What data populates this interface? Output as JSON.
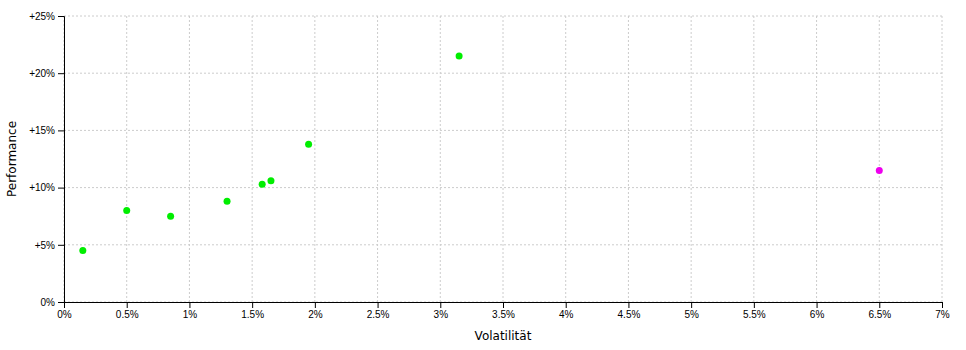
{
  "chart_data": {
    "type": "scatter",
    "xlabel": "Volatilität",
    "ylabel": "Performance",
    "series": [
      {
        "color": "#00ee00",
        "x": [
          0.15,
          0.5,
          0.85,
          1.3,
          1.58,
          1.65,
          1.95,
          3.15
        ],
        "values": [
          4.5,
          8.0,
          7.5,
          8.8,
          10.3,
          10.6,
          13.8,
          21.5
        ]
      },
      {
        "color": "#ee00ee",
        "x": [
          6.5
        ],
        "values": [
          11.5
        ]
      }
    ],
    "xlim": [
      0,
      7
    ],
    "ylim": [
      0,
      25
    ],
    "xticks": [
      {
        "value": 0,
        "label": "0%"
      },
      {
        "value": 0.5,
        "label": "0.5%"
      },
      {
        "value": 1.0,
        "label": "1%"
      },
      {
        "value": 1.5,
        "label": "1.5%"
      },
      {
        "value": 2.0,
        "label": "2%"
      },
      {
        "value": 2.5,
        "label": "2.5%"
      },
      {
        "value": 3.0,
        "label": "3%"
      },
      {
        "value": 3.5,
        "label": "3.5%"
      },
      {
        "value": 4.0,
        "label": "4%"
      },
      {
        "value": 4.5,
        "label": "4.5%"
      },
      {
        "value": 5.0,
        "label": "5%"
      },
      {
        "value": 5.5,
        "label": "5.5%"
      },
      {
        "value": 6.0,
        "label": "6%"
      },
      {
        "value": 6.5,
        "label": "6.5%"
      },
      {
        "value": 7.0,
        "label": "7%"
      }
    ],
    "yticks": [
      {
        "value": 0,
        "label": "0%"
      },
      {
        "value": 5,
        "label": "+5%"
      },
      {
        "value": 10,
        "label": "+10%"
      },
      {
        "value": 15,
        "label": "+15%"
      },
      {
        "value": 20,
        "label": "+20%"
      },
      {
        "value": 25,
        "label": "+25%"
      }
    ],
    "grid": true
  }
}
